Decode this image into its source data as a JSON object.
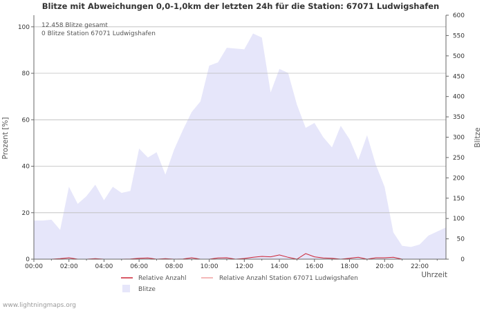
{
  "chart_data": {
    "type": "area",
    "title": "Blitze mit Abweichungen 0,0-1,0km der letzten 24h für die Station: 67071 Ludwigshafen",
    "xlabel": "Uhrzeit",
    "ylabel_left": "Prozent   [%]",
    "ylabel_right": "Blitze",
    "ylim_left": [
      0,
      105
    ],
    "ylim_right": [
      0,
      600
    ],
    "yticks_left": [
      "0",
      "20",
      "40",
      "60",
      "80",
      "100"
    ],
    "yticks_right": [
      "0",
      "50",
      "100",
      "150",
      "200",
      "250",
      "300",
      "350",
      "400",
      "450",
      "500",
      "550",
      "600"
    ],
    "xticks": [
      "00:00",
      "02:00",
      "04:00",
      "06:00",
      "08:00",
      "10:00",
      "12:00",
      "14:00",
      "16:00",
      "18:00",
      "20:00",
      "22:00"
    ],
    "info_lines": [
      "12.458 Blitze gesamt",
      "0 Blitze Station 67071 Ludwigshafen"
    ],
    "x_hours": [
      0,
      0.5,
      1,
      1.5,
      2,
      2.5,
      3,
      3.5,
      4,
      4.5,
      5,
      5.5,
      6,
      6.5,
      7,
      7.5,
      8,
      8.5,
      9,
      9.5,
      10,
      10.5,
      11,
      11.5,
      12,
      12.5,
      13,
      13.5,
      14,
      14.5,
      15,
      15.5,
      16,
      16.5,
      17,
      17.5,
      18,
      18.5,
      19,
      19.5,
      20,
      20.5,
      21,
      21.5,
      22,
      22.5,
      23,
      23.5
    ],
    "series": [
      {
        "name": "Blitze",
        "axis": "right",
        "color": "#e6e6fa",
        "values": [
          95,
          95,
          97,
          72,
          178,
          136,
          155,
          183,
          145,
          178,
          163,
          168,
          272,
          250,
          263,
          208,
          270,
          318,
          362,
          388,
          476,
          484,
          520,
          518,
          516,
          555,
          545,
          410,
          468,
          458,
          380,
          323,
          335,
          300,
          275,
          328,
          295,
          244,
          305,
          232,
          178,
          66,
          33,
          30,
          36,
          58,
          68,
          78
        ]
      },
      {
        "name": "Relative Anzahl",
        "axis": "left",
        "color": "#cc2233",
        "values": [
          0,
          0,
          0,
          0.2,
          0.6,
          0,
          0,
          0.2,
          0,
          0,
          0,
          0.1,
          0.4,
          0.5,
          0,
          0.2,
          0,
          0.1,
          0.6,
          0,
          0,
          0.5,
          0.6,
          0,
          0.3,
          0.8,
          1.2,
          1.0,
          1.8,
          0.8,
          0,
          2.4,
          1.0,
          0.5,
          0.4,
          0,
          0.4,
          0.8,
          0,
          0.6,
          0.6,
          0.8,
          0,
          0,
          0,
          0,
          0,
          0
        ]
      },
      {
        "name": "Relative Anzahl Station 67071 Ludwigshafen",
        "axis": "left",
        "color": "#f0a0a0",
        "values": [
          0,
          0,
          0,
          0,
          0,
          0,
          0,
          0,
          0,
          0,
          0,
          0,
          0,
          0,
          0,
          0,
          0,
          0,
          0,
          0,
          0,
          0,
          0,
          0,
          0,
          0,
          0,
          0,
          0,
          0,
          0,
          0,
          0,
          0,
          0,
          0,
          0,
          0,
          0,
          0,
          0,
          0,
          0,
          0,
          0,
          0,
          0,
          0
        ]
      }
    ],
    "legend": [
      {
        "label": "Relative Anzahl",
        "kind": "line",
        "color": "#cc2233"
      },
      {
        "label": "Relative Anzahl Station 67071 Ludwigshafen",
        "kind": "line",
        "color": "#f0a0a0"
      },
      {
        "label": "Blitze",
        "kind": "box",
        "color": "#e6e6fa"
      }
    ]
  },
  "footer": "www.lightningmaps.org"
}
